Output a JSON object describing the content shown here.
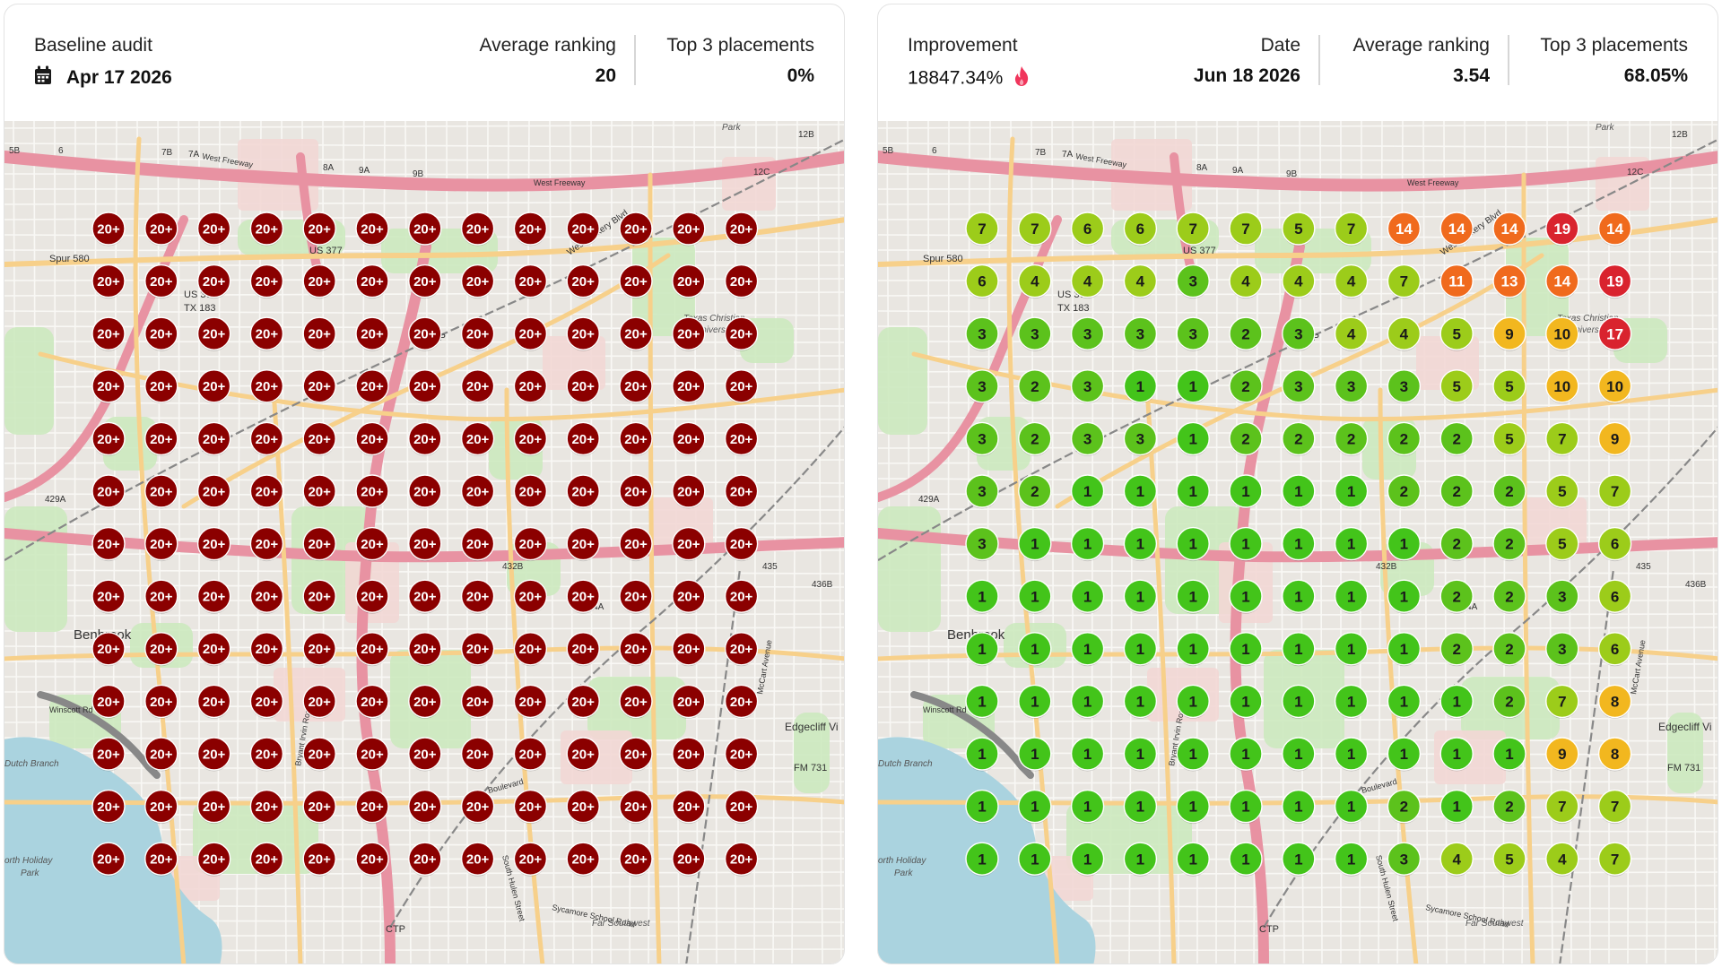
{
  "colors": {
    "red_marker": "#8b0000",
    "rank_1": "#43c41a",
    "rank_2_3": "#5cc21c",
    "rank_4_7": "#9ccc1a",
    "rank_8_10": "#f2b71f",
    "rank_11_14": "#f06a1d",
    "rank_17_19": "#d9232e",
    "flame": "#f0365c"
  },
  "baseline": {
    "title": "Baseline audit",
    "date_icon": "calendar-icon",
    "date": "Apr 17 2026",
    "avg_label": "Average ranking",
    "avg_value": "20",
    "top3_label": "Top 3 placements",
    "top3_value": "0%",
    "marker_text": "20+"
  },
  "current": {
    "improvement_label": "Improvement",
    "improvement_value": "18847.34%",
    "improvement_icon": "flame-icon",
    "date_label": "Date",
    "date_value": "Jun 18 2026",
    "avg_label": "Average ranking",
    "avg_value": "3.54",
    "top3_label": "Top 3 placements",
    "top3_value": "68.05%"
  },
  "map_labels": {
    "freeway": "West Freeway",
    "spur": "Spur 580",
    "us377": "US 377",
    "us377_tx183_a": "US 377",
    "us377_tx183_b": "TX 183",
    "vickery": "West Vickery Blvd",
    "benbrook": "Benbrook",
    "edgecliff": "Edgecliff Vi",
    "fm731": "FM 731",
    "ctp_top": "CTP",
    "ctp_bottom": "CTP",
    "tcu_a": "Texas Christian",
    "tcu_b": "Univers",
    "sycamore": "Sycamore School Road",
    "far_southwest": "Far Southwest",
    "winscott": "Winscott Rd",
    "dutch_branch": "Dutch Branch",
    "holiday_park_a": "orth Holiday",
    "holiday_park_b": "Park",
    "park": "Park",
    "mccart": "McCart Avenue",
    "south_hulen": "South Hulen Street",
    "bryant": "Bryant Irvin Road",
    "boulevard": "Boulevard",
    "exit_432b": "432B",
    "exit_434a": "434A",
    "exit_435": "435",
    "exit_436b": "436B",
    "exit_429a": "429A",
    "exit_12b": "12B",
    "exit_12c": "12C",
    "exit_9b": "9B",
    "exit_9a": "9A",
    "exit_8a": "8A",
    "exit_7a": "7A",
    "exit_7b": "7B",
    "exit_5b": "5B",
    "exit_6": "6"
  },
  "grid": {
    "rows": 13,
    "cols": 13,
    "improved_ranks": [
      [
        7,
        7,
        6,
        6,
        7,
        7,
        5,
        7,
        14,
        14,
        14,
        19,
        14
      ],
      [
        6,
        4,
        4,
        4,
        3,
        4,
        4,
        4,
        7,
        11,
        13,
        14,
        19
      ],
      [
        3,
        3,
        3,
        3,
        3,
        2,
        3,
        4,
        4,
        5,
        9,
        10,
        17
      ],
      [
        3,
        2,
        3,
        1,
        1,
        2,
        3,
        3,
        3,
        5,
        5,
        10,
        10
      ],
      [
        3,
        2,
        3,
        3,
        1,
        2,
        2,
        2,
        2,
        2,
        5,
        7,
        9
      ],
      [
        3,
        2,
        1,
        1,
        1,
        1,
        1,
        1,
        2,
        2,
        2,
        5,
        7
      ],
      [
        3,
        1,
        1,
        1,
        1,
        1,
        1,
        1,
        1,
        2,
        2,
        5,
        6
      ],
      [
        1,
        1,
        1,
        1,
        1,
        1,
        1,
        1,
        1,
        2,
        2,
        3,
        6
      ],
      [
        1,
        1,
        1,
        1,
        1,
        1,
        1,
        1,
        1,
        2,
        2,
        3,
        6
      ],
      [
        1,
        1,
        1,
        1,
        1,
        1,
        1,
        1,
        1,
        1,
        2,
        7,
        8
      ],
      [
        1,
        1,
        1,
        1,
        1,
        1,
        1,
        1,
        1,
        1,
        1,
        9,
        8
      ],
      [
        1,
        1,
        1,
        1,
        1,
        1,
        1,
        1,
        2,
        1,
        2,
        7,
        7
      ],
      [
        1,
        1,
        1,
        1,
        1,
        1,
        1,
        1,
        3,
        4,
        5,
        4,
        7
      ]
    ]
  }
}
